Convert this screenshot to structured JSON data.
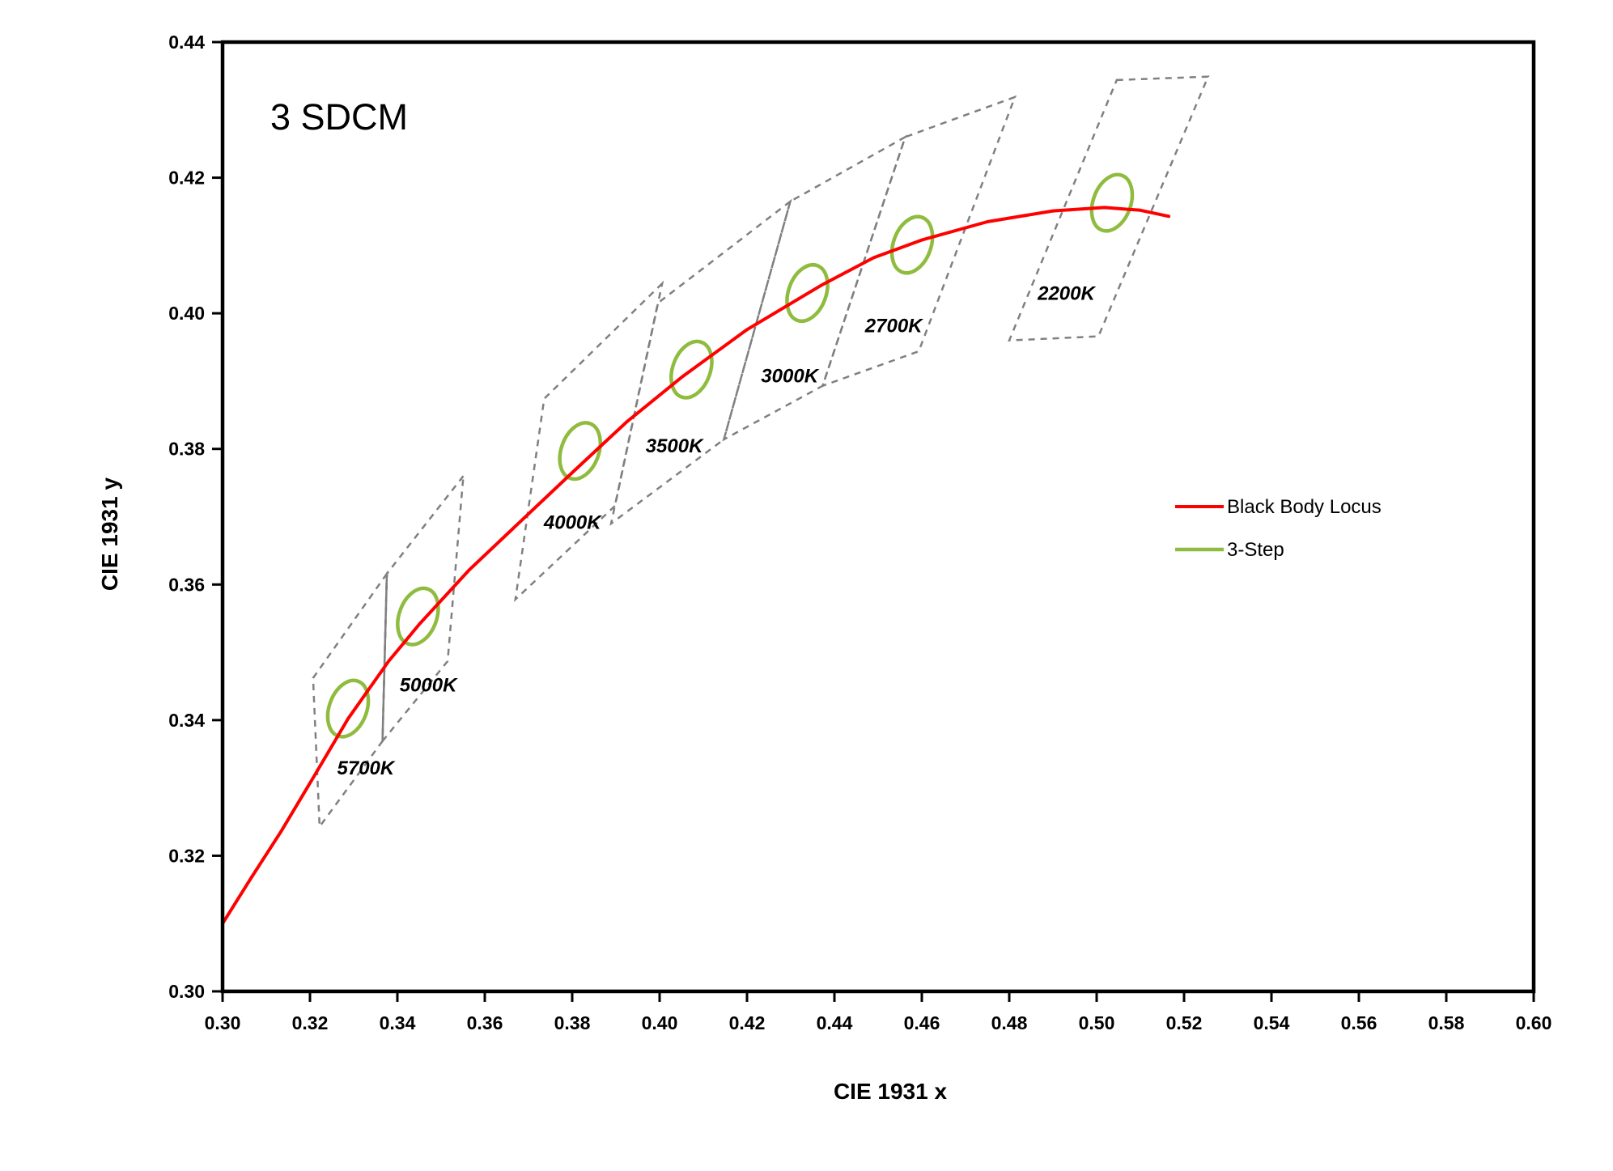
{
  "chart_data": {
    "type": "line",
    "title": "3 SDCM",
    "xlabel": "CIE 1931 x",
    "ylabel": "CIE 1931 y",
    "xlim": [
      0.3,
      0.6
    ],
    "ylim": [
      0.3,
      0.44
    ],
    "x_tick_step": 0.02,
    "y_tick_step": 0.02,
    "x_ticks": [
      "0.30",
      "0.32",
      "0.34",
      "0.36",
      "0.38",
      "0.40",
      "0.42",
      "0.44",
      "0.46",
      "0.48",
      "0.50",
      "0.52",
      "0.54",
      "0.56",
      "0.58",
      "0.60"
    ],
    "y_ticks": [
      "0.30",
      "0.32",
      "0.34",
      "0.36",
      "0.38",
      "0.40",
      "0.42",
      "0.44"
    ],
    "grid": false,
    "legend_position": "middle-right",
    "colors": {
      "locus": "#FF0000",
      "ellipse": "#8FBC3F",
      "bin": "#808080",
      "text": "#000000",
      "border": "#000000"
    },
    "series": [
      {
        "name": "Black Body Locus",
        "type": "line",
        "color": "#FF0000",
        "points": [
          [
            0.3,
            0.31
          ],
          [
            0.3064,
            0.3166
          ],
          [
            0.3135,
            0.3237
          ],
          [
            0.321,
            0.3318
          ],
          [
            0.3287,
            0.3402
          ],
          [
            0.338,
            0.3487
          ],
          [
            0.3451,
            0.3542
          ],
          [
            0.3565,
            0.3622
          ],
          [
            0.368,
            0.3692
          ],
          [
            0.3805,
            0.3768
          ],
          [
            0.3925,
            0.384
          ],
          [
            0.4053,
            0.3907
          ],
          [
            0.42,
            0.3976
          ],
          [
            0.4369,
            0.4041
          ],
          [
            0.449,
            0.4082
          ],
          [
            0.4599,
            0.4108
          ],
          [
            0.475,
            0.4135
          ],
          [
            0.49,
            0.4151
          ],
          [
            0.5018,
            0.4156
          ],
          [
            0.51,
            0.4152
          ],
          [
            0.5165,
            0.4143
          ]
        ]
      },
      {
        "name": "3-Step",
        "type": "ellipse",
        "color": "#8FBC3F",
        "rx": 0.0043,
        "ry": 0.0043,
        "rotation_deg": 20,
        "centers": [
          {
            "cct": "5700K",
            "x": 0.3287,
            "y": 0.3417
          },
          {
            "cct": "5000K",
            "x": 0.3447,
            "y": 0.3553
          },
          {
            "cct": "4000K",
            "x": 0.3818,
            "y": 0.3797
          },
          {
            "cct": "3500K",
            "x": 0.4073,
            "y": 0.3917
          },
          {
            "cct": "3000K",
            "x": 0.4338,
            "y": 0.403
          },
          {
            "cct": "2700K",
            "x": 0.4578,
            "y": 0.4101
          },
          {
            "cct": "2200K",
            "x": 0.5035,
            "y": 0.4163
          }
        ]
      }
    ],
    "bins": [
      {
        "label": "5700K",
        "polygon": [
          [
            0.3376,
            0.3616
          ],
          [
            0.3207,
            0.3462
          ],
          [
            0.3222,
            0.3243
          ],
          [
            0.3366,
            0.3369
          ]
        ],
        "label_pos": [
          0.3262,
          0.332
        ]
      },
      {
        "label": "5000K",
        "polygon": [
          [
            0.3551,
            0.376
          ],
          [
            0.3376,
            0.3616
          ],
          [
            0.3366,
            0.3369
          ],
          [
            0.3515,
            0.3487
          ]
        ],
        "label_pos": [
          0.3405,
          0.3442
        ]
      },
      {
        "label": "4000K",
        "polygon": [
          [
            0.4006,
            0.4044
          ],
          [
            0.3736,
            0.3874
          ],
          [
            0.367,
            0.3578
          ],
          [
            0.3898,
            0.3716
          ]
        ],
        "label_pos": [
          0.3735,
          0.3682
        ]
      },
      {
        "label": "3500K",
        "polygon": [
          [
            0.4299,
            0.4165
          ],
          [
            0.3996,
            0.4015
          ],
          [
            0.3889,
            0.369
          ],
          [
            0.4147,
            0.3814
          ]
        ],
        "label_pos": [
          0.3968,
          0.3795
        ]
      },
      {
        "label": "3000K",
        "polygon": [
          [
            0.4562,
            0.426
          ],
          [
            0.4299,
            0.4165
          ],
          [
            0.4147,
            0.3814
          ],
          [
            0.4373,
            0.3893
          ]
        ],
        "label_pos": [
          0.4232,
          0.3898
        ]
      },
      {
        "label": "2700K",
        "polygon": [
          [
            0.4813,
            0.4319
          ],
          [
            0.4562,
            0.426
          ],
          [
            0.4373,
            0.3893
          ],
          [
            0.4593,
            0.3944
          ]
        ],
        "label_pos": [
          0.447,
          0.3972
        ]
      },
      {
        "label": "2200K",
        "polygon": [
          [
            0.5046,
            0.4344
          ],
          [
            0.5255,
            0.4349
          ],
          [
            0.5004,
            0.3966
          ],
          [
            0.48,
            0.396
          ]
        ],
        "label_pos": [
          0.4865,
          0.402
        ]
      }
    ],
    "solid_edges": [
      [
        [
          0.3376,
          0.3616
        ],
        [
          0.3366,
          0.3369
        ]
      ]
    ],
    "legend": {
      "items": [
        {
          "label": "Black Body Locus",
          "color": "#FF0000"
        },
        {
          "label": "3-Step",
          "color": "#8FBC3F"
        }
      ]
    }
  }
}
